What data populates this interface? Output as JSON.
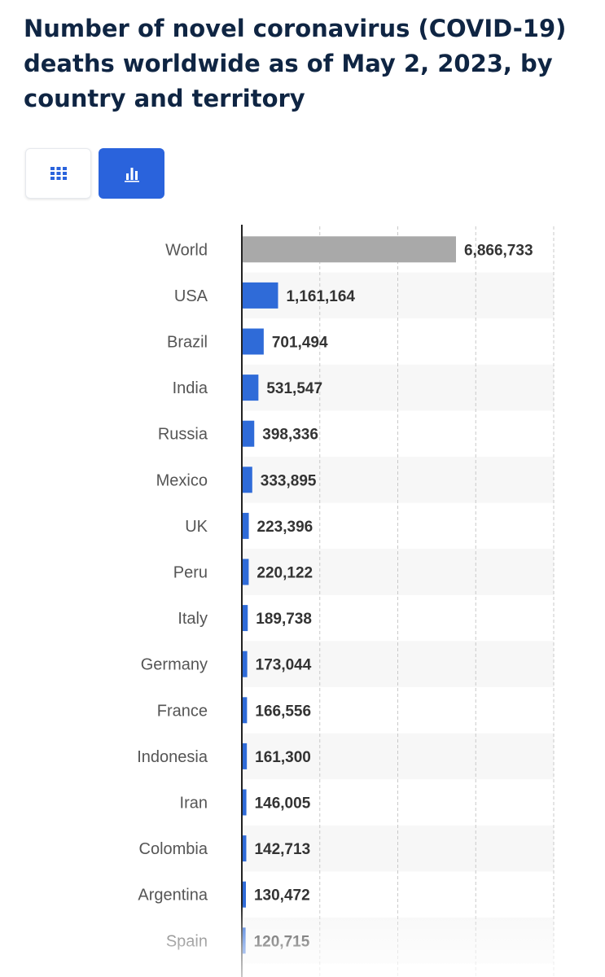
{
  "header": {
    "title": "Number of novel coronavirus (COVID-19) deaths worldwide as of May 2, 2023, by country and territory"
  },
  "view_toggle": {
    "table_icon": "grid-icon",
    "chart_icon": "bar-chart-icon",
    "active": "chart",
    "active_color": "#2a63dc"
  },
  "chart_data": {
    "type": "bar",
    "orientation": "horizontal",
    "title": "Number of novel coronavirus (COVID-19) deaths worldwide as of May 2, 2023, by country and territory",
    "categories": [
      "World",
      "USA",
      "Brazil",
      "India",
      "Russia",
      "Mexico",
      "UK",
      "Peru",
      "Italy",
      "Germany",
      "France",
      "Indonesia",
      "Iran",
      "Colombia",
      "Argentina",
      "Spain"
    ],
    "values": [
      6866733,
      1161164,
      701494,
      531547,
      398336,
      333895,
      223396,
      220122,
      189738,
      173044,
      166556,
      161300,
      146005,
      142713,
      130472,
      120715
    ],
    "value_labels": [
      "6,866,733",
      "1,161,164",
      "701,494",
      "531,547",
      "398,336",
      "333,895",
      "223,396",
      "220,122",
      "189,738",
      "173,044",
      "166,556",
      "161,300",
      "146,005",
      "142,713",
      "130,472",
      "120,715"
    ],
    "xlim": [
      0,
      10000000
    ],
    "grid": true,
    "highlight_category": "World",
    "colors": {
      "bar": "#2f6bd8",
      "highlight": "#a9a9a9",
      "label": "#333333",
      "category": "#555555",
      "grid": "#c9c9c9",
      "band": "#f7f7f7"
    }
  }
}
